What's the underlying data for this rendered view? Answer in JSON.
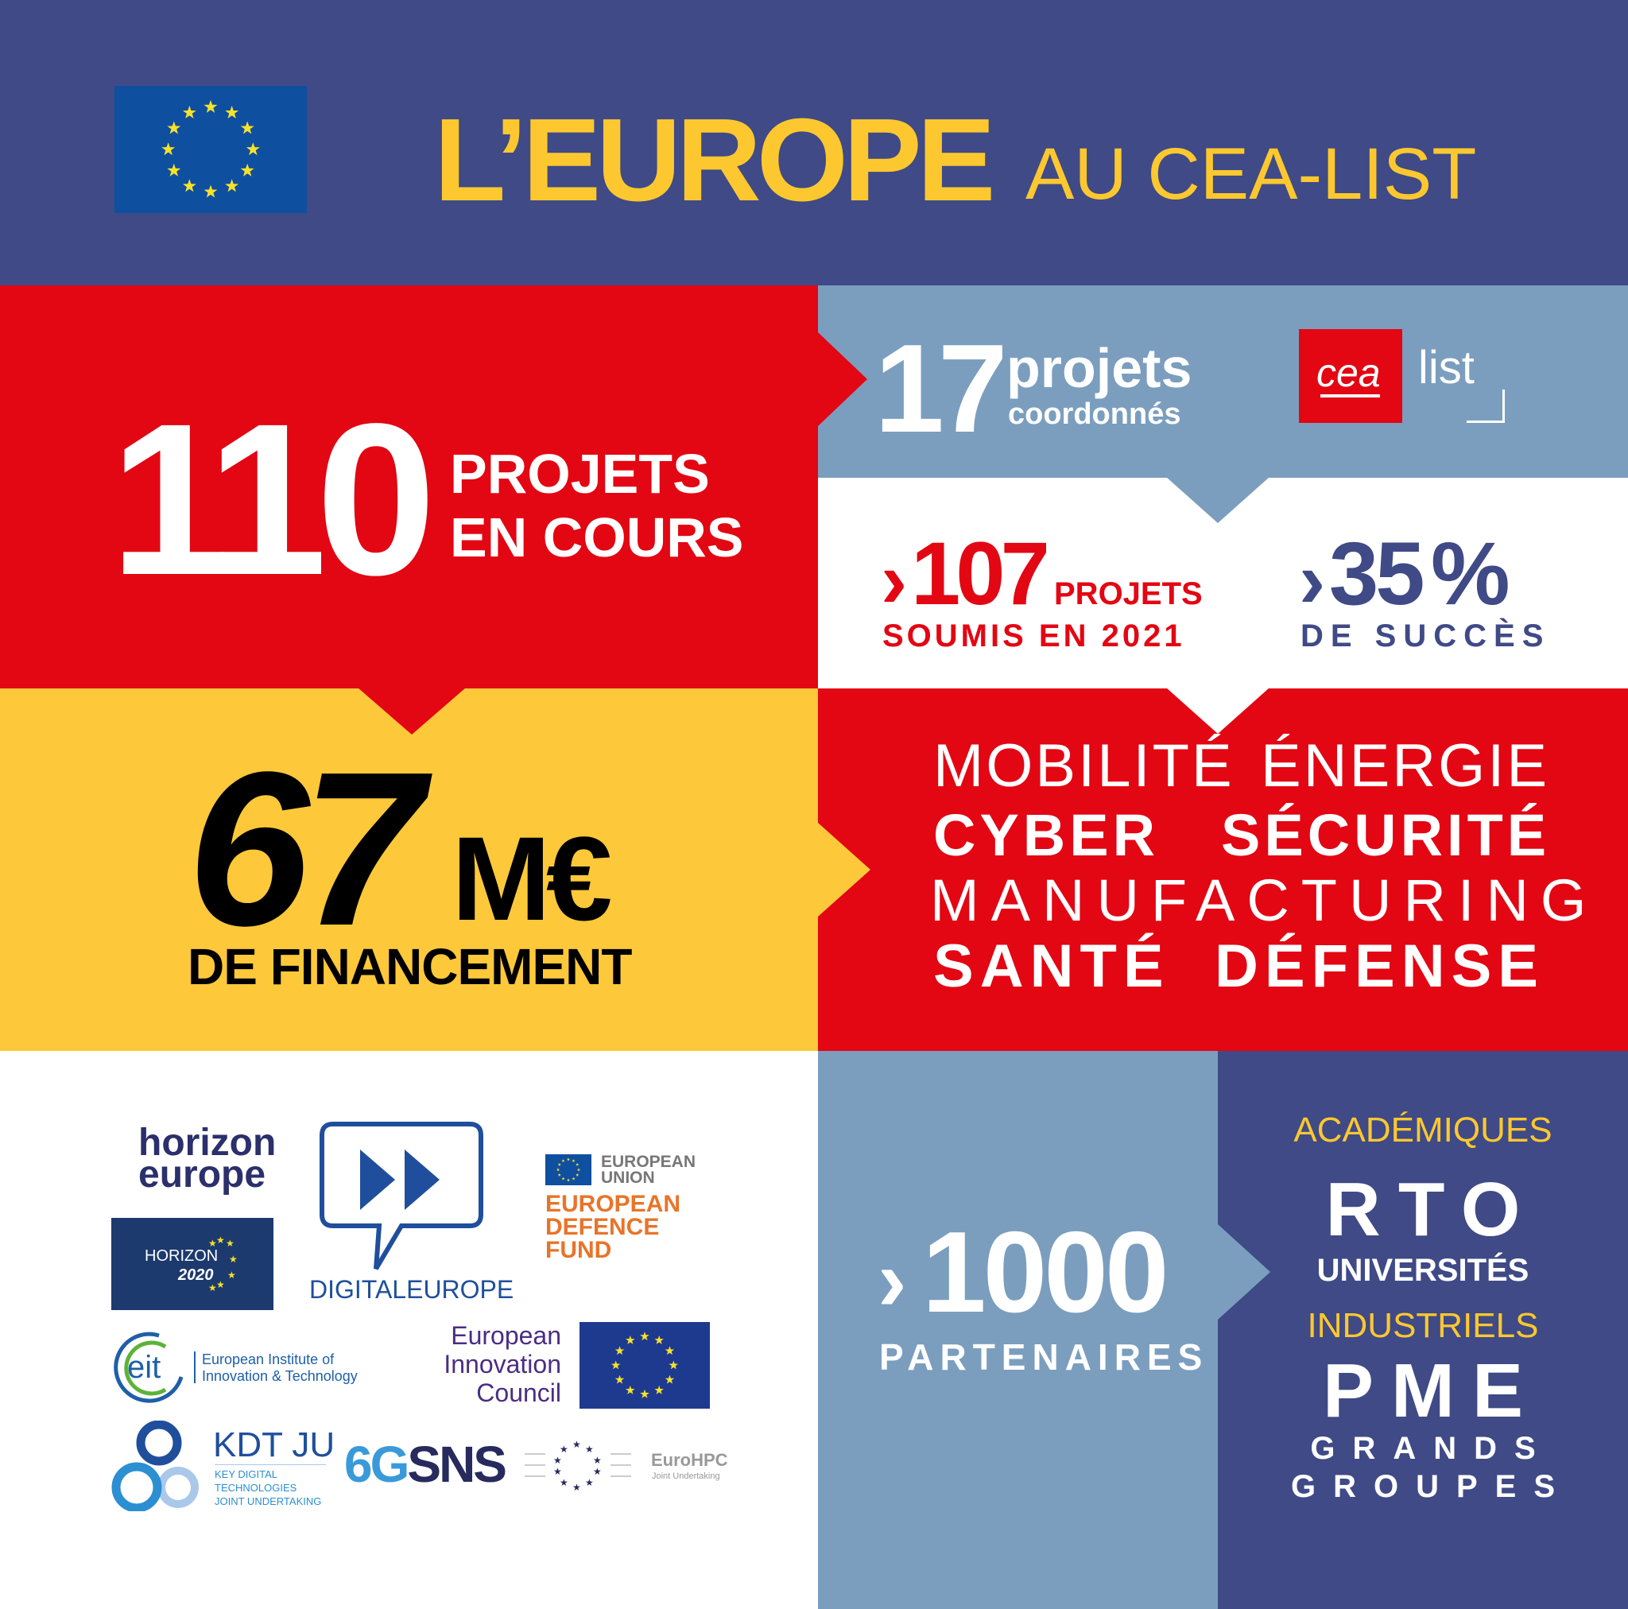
{
  "colors": {
    "navy": "#3f4a86",
    "red": "#e30613",
    "steel": "#7b9ebe",
    "yellow": "#fdc83a",
    "title_yellow": "#fdc82f",
    "eu_blue": "#0f4fa0"
  },
  "header": {
    "title_main": "L’EUROPE",
    "title_sub": "AU CEA-LIST",
    "flag_icon": "eu-flag"
  },
  "ongoing": {
    "number": "110",
    "line1": "PROJETS",
    "line2": "EN COURS"
  },
  "coordinated": {
    "number": "17",
    "word": "projets",
    "sub": "coordonnés"
  },
  "logo": {
    "cea": "cea",
    "list": "list"
  },
  "submitted": {
    "prefix": "›",
    "number": "107",
    "unit": "PROJETS",
    "sub": "SOUMIS EN 2021"
  },
  "success": {
    "prefix": "›",
    "number": "35",
    "unit": "%",
    "sub": "DE SUCCÈS"
  },
  "funding": {
    "number": "67",
    "unit": "M€",
    "sub": "DE FINANCEMENT"
  },
  "domains": {
    "mobility": "MOBILITÉ",
    "energy": "ÉNERGIE",
    "cyber": "CYBER",
    "security": "SÉCURITÉ",
    "manufacturing": "MANUFACTURING",
    "health": "SANTÉ",
    "defense": "DÉFENSE"
  },
  "partners": {
    "prefix": "›",
    "number": "1000",
    "label": "PARTENAIRES"
  },
  "partner_types": {
    "academic_title": "ACADÉMIQUES",
    "rto": "RTO",
    "universities": "UNIVERSITÉS",
    "industrial_title": "INDUSTRIELS",
    "sme": "PME",
    "large1": "GRANDS",
    "large2": "GROUPES"
  },
  "programs": {
    "horizon_europe": [
      "horizon",
      "europe"
    ],
    "horizon2020": [
      "HORIZON",
      "2020"
    ],
    "digital_europe": "DIGITALEUROPE",
    "eu": [
      "EUROPEAN",
      "UNION"
    ],
    "edf": [
      "EUROPEAN",
      "DEFENCE",
      "FUND"
    ],
    "eit": [
      "European Institute of",
      "Innovation & Technology"
    ],
    "eit_mark": "eit",
    "eic": [
      "European",
      "Innovation",
      "Council"
    ],
    "kdt": "KDT JU",
    "kdt_sub": [
      "KEY DIGITAL",
      "TECHNOLOGIES",
      "JOINT UNDERTAKING"
    ],
    "sns_6g": "6G",
    "sns": "SNS",
    "eurohpc": "EuroHPC",
    "eurohpc_sub": "Joint Undertaking"
  }
}
